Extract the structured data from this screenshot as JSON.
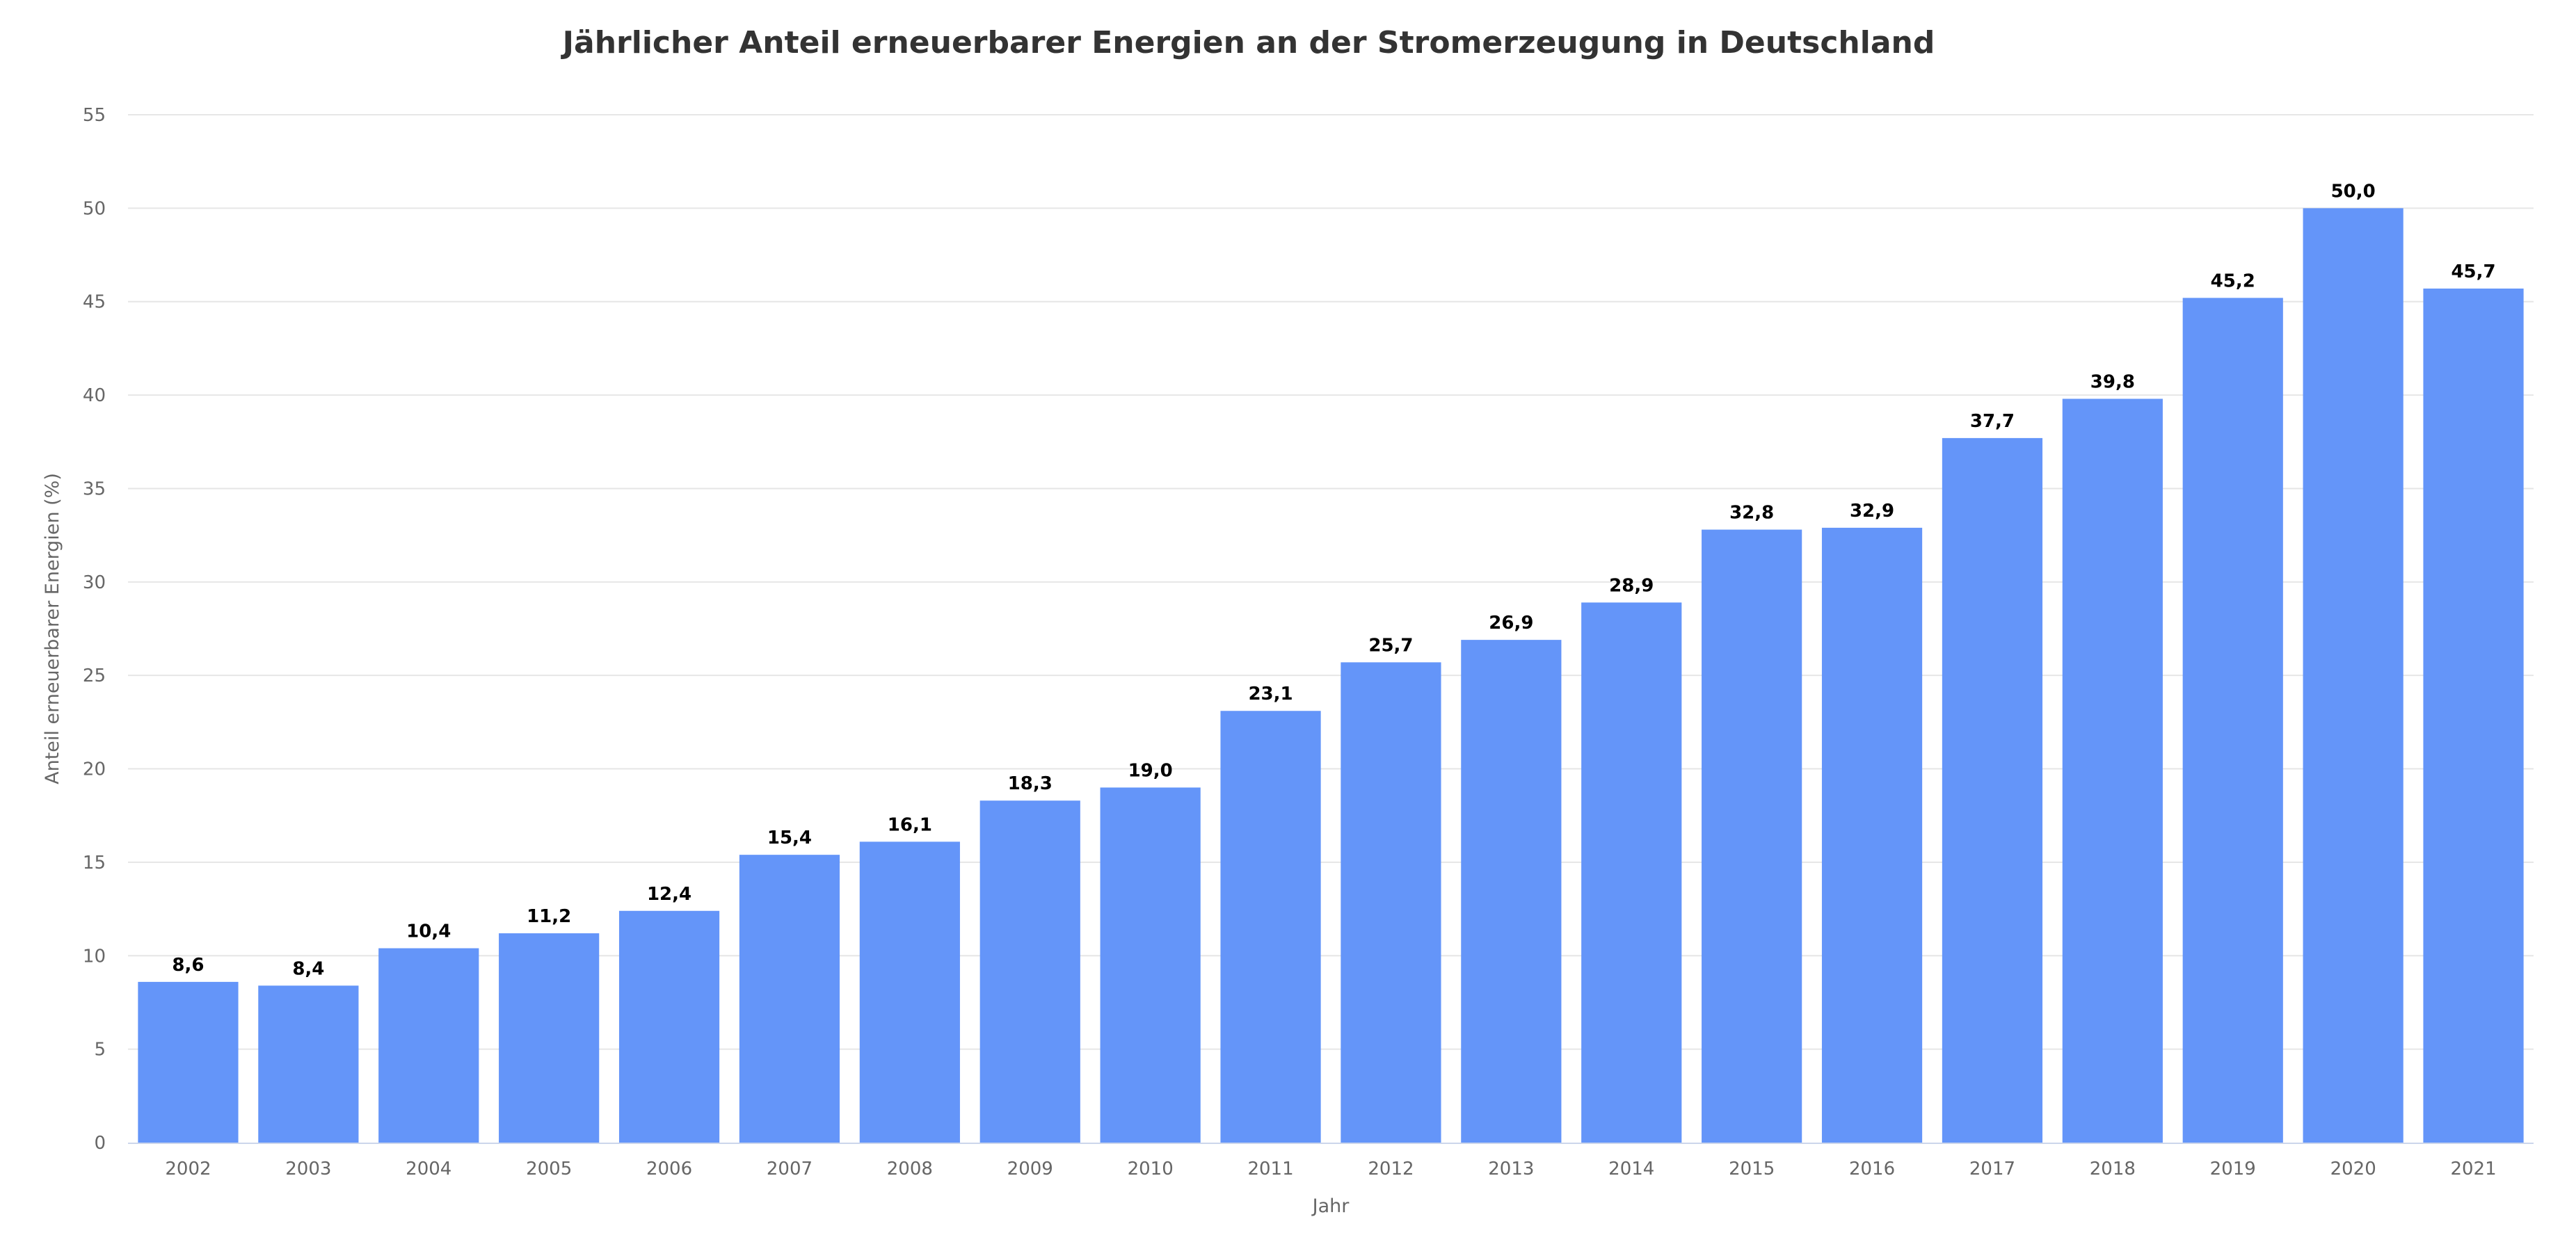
{
  "chart_data": {
    "type": "bar",
    "title": "Jährlicher Anteil erneuerbarer Energien an der Stromerzeugung in Deutschland",
    "xlabel": "Jahr",
    "ylabel": "Anteil erneuerbarer Energien (%)",
    "categories": [
      "2002",
      "2003",
      "2004",
      "2005",
      "2006",
      "2007",
      "2008",
      "2009",
      "2010",
      "2011",
      "2012",
      "2013",
      "2014",
      "2015",
      "2016",
      "2017",
      "2018",
      "2019",
      "2020",
      "2021"
    ],
    "values": [
      8.6,
      8.4,
      10.4,
      11.2,
      12.4,
      15.4,
      16.1,
      18.3,
      19.0,
      23.1,
      25.7,
      26.9,
      28.9,
      32.8,
      32.9,
      37.7,
      39.8,
      45.2,
      50.0,
      45.7
    ],
    "data_labels": [
      "8,6",
      "8,4",
      "10,4",
      "11,2",
      "12,4",
      "15,4",
      "16,1",
      "18,3",
      "19,0",
      "23,1",
      "25,7",
      "26,9",
      "28,9",
      "32,8",
      "32,9",
      "37,7",
      "39,8",
      "45,2",
      "50,0",
      "45,7"
    ],
    "ylim": [
      0,
      55
    ],
    "yticks": [
      "0",
      "5",
      "10",
      "15",
      "20",
      "25",
      "30",
      "35",
      "40",
      "45",
      "50",
      "55"
    ],
    "grid": true,
    "legend": false,
    "bar_color": "#6495f9"
  }
}
